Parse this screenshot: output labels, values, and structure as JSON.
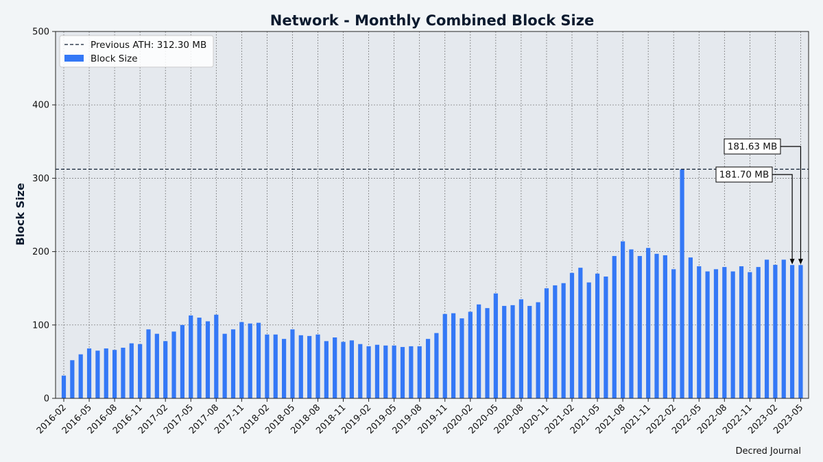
{
  "chart_data": {
    "type": "bar",
    "title": "Network - Monthly Combined Block Size",
    "xlabel": "",
    "ylabel": "Block Size",
    "ylim": [
      0,
      500
    ],
    "yticks": [
      0,
      100,
      200,
      300,
      400,
      500
    ],
    "grid": true,
    "legend_position": "top-left",
    "x_tick_labels": [
      "2016-02",
      "2016-05",
      "2016-08",
      "2016-11",
      "2017-02",
      "2017-05",
      "2017-08",
      "2017-11",
      "2018-02",
      "2018-05",
      "2018-08",
      "2018-11",
      "2019-02",
      "2019-05",
      "2019-08",
      "2019-11",
      "2020-02",
      "2020-05",
      "2020-08",
      "2020-11",
      "2021-02",
      "2021-05",
      "2021-08",
      "2021-11",
      "2022-02",
      "2022-05",
      "2022-08",
      "2022-11",
      "2023-02",
      "2023-05"
    ],
    "categories": [
      "2016-02",
      "2016-03",
      "2016-04",
      "2016-05",
      "2016-06",
      "2016-07",
      "2016-08",
      "2016-09",
      "2016-10",
      "2016-11",
      "2016-12",
      "2017-01",
      "2017-02",
      "2017-03",
      "2017-04",
      "2017-05",
      "2017-06",
      "2017-07",
      "2017-08",
      "2017-09",
      "2017-10",
      "2017-11",
      "2017-12",
      "2018-01",
      "2018-02",
      "2018-03",
      "2018-04",
      "2018-05",
      "2018-06",
      "2018-07",
      "2018-08",
      "2018-09",
      "2018-10",
      "2018-11",
      "2018-12",
      "2019-01",
      "2019-02",
      "2019-03",
      "2019-04",
      "2019-05",
      "2019-06",
      "2019-07",
      "2019-08",
      "2019-09",
      "2019-10",
      "2019-11",
      "2019-12",
      "2020-01",
      "2020-02",
      "2020-03",
      "2020-04",
      "2020-05",
      "2020-06",
      "2020-07",
      "2020-08",
      "2020-09",
      "2020-10",
      "2020-11",
      "2020-12",
      "2021-01",
      "2021-02",
      "2021-03",
      "2021-04",
      "2021-05",
      "2021-06",
      "2021-07",
      "2021-08",
      "2021-09",
      "2021-10",
      "2021-11",
      "2021-12",
      "2022-01",
      "2022-02",
      "2022-03",
      "2022-04",
      "2022-05",
      "2022-06",
      "2022-07",
      "2022-08",
      "2022-09",
      "2022-10",
      "2022-11",
      "2022-12",
      "2023-01",
      "2023-02",
      "2023-03",
      "2023-04",
      "2023-05"
    ],
    "series": [
      {
        "name": "Block Size",
        "color": "#3478f6",
        "values": [
          31,
          52,
          60,
          68,
          65,
          68,
          66,
          69,
          75,
          74,
          94,
          88,
          78,
          91,
          100,
          113,
          110,
          105,
          114,
          88,
          94,
          104,
          102,
          103,
          87,
          87,
          81,
          94,
          86,
          85,
          87,
          78,
          83,
          77,
          79,
          74,
          71,
          73,
          72,
          72,
          70,
          71,
          71,
          81,
          89,
          115,
          116,
          109,
          118,
          128,
          123,
          143,
          126,
          127,
          135,
          126,
          131,
          150,
          154,
          157,
          171,
          178,
          158,
          170,
          166,
          194,
          214,
          203,
          194,
          205,
          197,
          195,
          176,
          312,
          192,
          180,
          173,
          176,
          179,
          173,
          180,
          172,
          179,
          189,
          182,
          189,
          181.7,
          181.63
        ]
      }
    ],
    "reference_line": {
      "name": "Previous ATH: 312.30 MB",
      "value": 312.3,
      "color": "#0b1a2e",
      "style": "dashed"
    },
    "annotations": [
      {
        "text": "181.70 MB",
        "category": "2023-04"
      },
      {
        "text": "181.63 MB",
        "category": "2023-05"
      }
    ],
    "credit": "Decred Journal",
    "colors": {
      "plot_background": "#e5e9ee",
      "page_background": "#f2f5f7",
      "grid": "#6b6b6b",
      "text": "#0b1a2e"
    }
  }
}
